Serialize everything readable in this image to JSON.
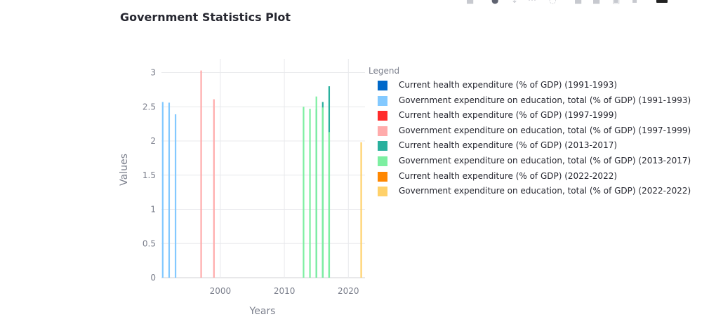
{
  "page": {
    "title": "Government Statistics Plot"
  },
  "toolbar": {
    "icons": [
      "camera-icon",
      "zoom-icon",
      "pan-icon",
      "select-icon",
      "lasso-icon",
      "zoom-in-icon",
      "zoom-out-icon",
      "autoscale-icon",
      "reset-icon",
      "plotly-logo-icon"
    ]
  },
  "chart_data": {
    "type": "bar",
    "title": "Government Statistics Plot",
    "xlabel": "Years",
    "ylabel": "Values",
    "xlim": [
      1990.8,
      2022.6
    ],
    "ylim": [
      0,
      3.2
    ],
    "xticks": [
      2000,
      2010,
      2020
    ],
    "xtick_labels": [
      "2000",
      "2010",
      "2020"
    ],
    "yticks": [
      0,
      0.5,
      1,
      1.5,
      2,
      2.5,
      3
    ],
    "ytick_labels": [
      "0",
      "0.5",
      "1",
      "1.5",
      "2",
      "2.5",
      "3"
    ],
    "grid": true,
    "legend_title": "Legend",
    "legend_position": "right",
    "series": [
      {
        "name": "Current health expenditure (% of GDP) (1991-1993)",
        "color": "#0068c9",
        "x": [],
        "values": []
      },
      {
        "name": "Government expenditure on education, total (% of GDP) (1991-1993)",
        "color": "#83c9ff",
        "x": [
          1991,
          1992,
          1993
        ],
        "values": [
          2.57,
          2.56,
          2.39
        ]
      },
      {
        "name": "Current health expenditure (% of GDP) (1997-1999)",
        "color": "#ff2b2b",
        "x": [],
        "values": []
      },
      {
        "name": "Government expenditure on education, total (% of GDP) (1997-1999)",
        "color": "#ffabab",
        "x": [
          1997,
          1999
        ],
        "values": [
          3.03,
          2.61
        ]
      },
      {
        "name": "Current health expenditure (% of GDP) (2013-2017)",
        "color": "#29b09d",
        "x": [
          2015,
          2016,
          2017
        ],
        "values": [
          2.46,
          2.57,
          2.8
        ]
      },
      {
        "name": "Government expenditure on education, total (% of GDP) (2013-2017)",
        "color": "#7defa1",
        "x": [
          2013,
          2014,
          2015,
          2016,
          2017
        ],
        "values": [
          2.5,
          2.47,
          2.65,
          2.49,
          2.13
        ]
      },
      {
        "name": "Current health expenditure (% of GDP) (2022-2022)",
        "color": "#ff8700",
        "x": [],
        "values": []
      },
      {
        "name": "Government expenditure on education, total (% of GDP) (2022-2022)",
        "color": "#ffd16a",
        "x": [
          2022
        ],
        "values": [
          1.98
        ]
      }
    ]
  }
}
